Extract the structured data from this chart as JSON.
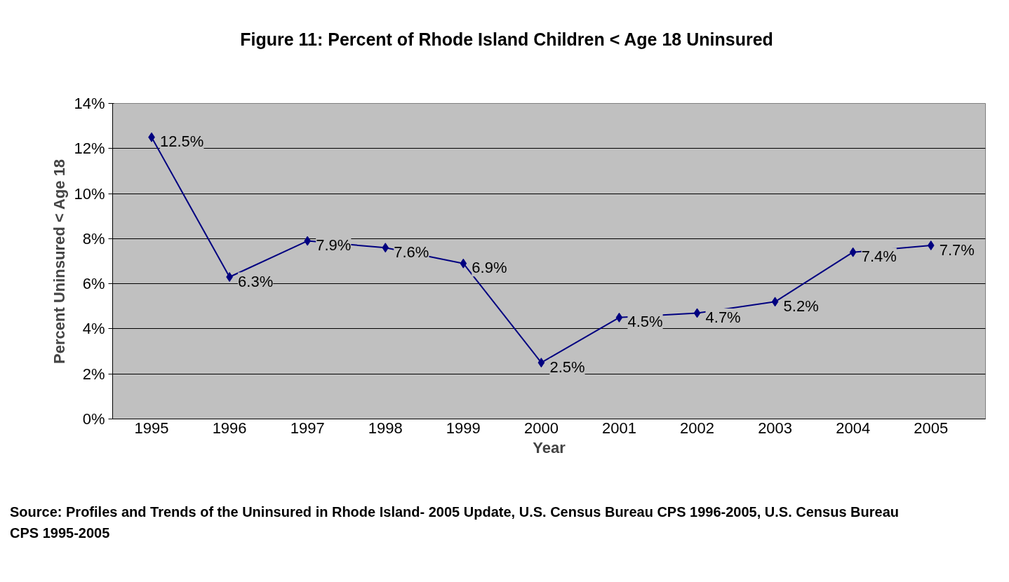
{
  "chart_data": {
    "type": "line",
    "title": "Figure 11: Percent of Rhode Island Children < Age 18 Uninsured",
    "xlabel": "Year",
    "ylabel": "Percent Uninsured < Age 18",
    "categories": [
      "1995",
      "1996",
      "1997",
      "1998",
      "1999",
      "2000",
      "2001",
      "2002",
      "2003",
      "2004",
      "2005"
    ],
    "values": [
      12.5,
      6.3,
      7.9,
      7.6,
      6.9,
      2.5,
      4.5,
      4.7,
      5.2,
      7.4,
      7.7
    ],
    "value_labels": [
      "12.5%",
      "6.3%",
      "7.9%",
      "7.6%",
      "6.9%",
      "2.5%",
      "4.5%",
      "4.7%",
      "5.2%",
      "7.4%",
      "7.7%"
    ],
    "color": "#000080",
    "marker": "diamond",
    "line_style": "solid",
    "grid": "y",
    "ylim": [
      0,
      14
    ],
    "yticks": [
      {
        "value": 0,
        "label": "0%"
      },
      {
        "value": 2,
        "label": "2%"
      },
      {
        "value": 4,
        "label": "4%"
      },
      {
        "value": 6,
        "label": "6%"
      },
      {
        "value": 8,
        "label": "8%"
      },
      {
        "value": 10,
        "label": "10%"
      },
      {
        "value": 12,
        "label": "12%"
      },
      {
        "value": 14,
        "label": "14%"
      }
    ],
    "annotations": [
      "Source: Profiles and Trends of the Uninsured in Rhode Island- 2005 Update, U.S. Census Bureau CPS 1996-2005, U.S. Census Bureau CPS 1995-2005"
    ]
  }
}
